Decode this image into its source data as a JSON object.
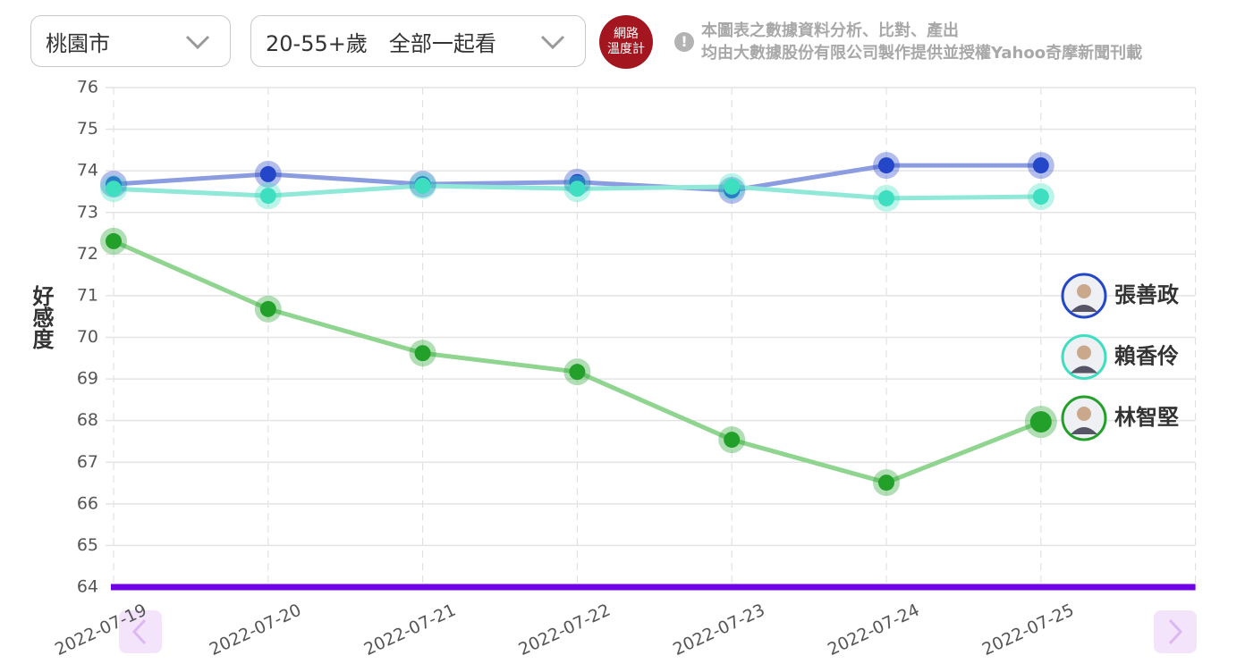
{
  "filters": [
    "桃園市",
    "20-55+歲　全部一起看"
  ],
  "badge": [
    "網路",
    "溫度計"
  ],
  "notice": [
    "本圖表之數據資料分析、比對、產出",
    "均由大數據股份有限公司製作提供並授權Yahoo奇摩新聞刊載"
  ],
  "chart_data": {
    "type": "line",
    "y_label": "好感度",
    "categories": [
      "2022-07-19",
      "2022-07-20",
      "2022-07-21",
      "2022-07-22",
      "2022-07-23",
      "2022-07-24",
      "2022-07-25",
      null
    ],
    "series": [
      {
        "name": "張善政",
        "color": "#2446c8",
        "values": [
          73.68,
          73.92,
          73.68,
          73.73,
          73.53,
          74.13,
          74.13,
          null
        ]
      },
      {
        "name": "賴香伶",
        "color": "#3ddfc0",
        "values": [
          73.57,
          73.4,
          73.64,
          73.57,
          73.62,
          73.34,
          73.38,
          null
        ]
      },
      {
        "name": "林智堅",
        "color": "#22a02a",
        "values": [
          72.31,
          70.68,
          69.62,
          69.17,
          67.54,
          66.51,
          67.97,
          null
        ]
      }
    ],
    "ylim": [
      64,
      76
    ],
    "yticks": [
      64,
      65,
      66,
      67,
      68,
      69,
      70,
      71,
      72,
      73,
      74,
      75,
      76
    ],
    "grid": true
  }
}
